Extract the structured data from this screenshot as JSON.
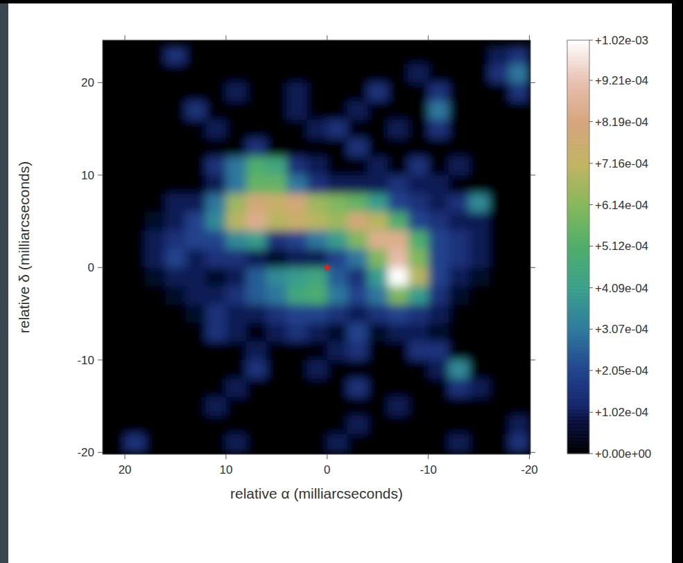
{
  "chart_data": {
    "type": "heatmap",
    "x_label": "relative α (milliarcseconds)",
    "y_label": "relative δ (milliarcseconds)",
    "xlim": [
      22.2,
      -20.1
    ],
    "ylim": [
      -20.2,
      24.6
    ],
    "xticks": [
      20,
      10,
      0,
      -10,
      -20
    ],
    "yticks": [
      -20,
      -10,
      0,
      10,
      20
    ],
    "x": [
      21,
      19,
      17,
      15,
      13,
      11,
      9,
      7,
      5,
      3,
      1,
      -1,
      -3,
      -5,
      -7,
      -9,
      -11,
      -13,
      -15,
      -17,
      -19
    ],
    "y": [
      23,
      21,
      19,
      17,
      15,
      13,
      11,
      9,
      7,
      5,
      3,
      1,
      -1,
      -3,
      -5,
      -7,
      -9,
      -11,
      -13,
      -15,
      -17,
      -19
    ],
    "z": [
      [
        0,
        0,
        0,
        0.00015,
        0,
        0,
        0,
        0,
        0,
        0,
        0,
        0,
        0,
        0,
        0,
        0,
        0,
        0,
        0,
        0.0001,
        0.00015
      ],
      [
        0,
        0,
        0,
        0,
        0,
        0,
        0,
        0,
        0,
        0,
        0,
        0,
        0,
        0,
        0,
        0.0001,
        0,
        0,
        0,
        0.00015,
        0.0003
      ],
      [
        0,
        0,
        0,
        0,
        0,
        0,
        0.0001,
        0,
        0,
        0.0001,
        0,
        0,
        0,
        0.00015,
        0,
        0,
        0.00015,
        0,
        0,
        0,
        0.00015
      ],
      [
        0,
        0,
        0,
        0,
        0.00015,
        0,
        0,
        0,
        0,
        0.0001,
        0,
        0,
        0.0001,
        0,
        0,
        0,
        0.0003,
        0,
        0,
        0,
        0
      ],
      [
        0,
        0,
        0,
        0,
        0,
        0.0001,
        0,
        0,
        0,
        0,
        0.0001,
        0.00015,
        0,
        0,
        0.0001,
        0,
        0.00015,
        0,
        0,
        0,
        0
      ],
      [
        0,
        0,
        0,
        0,
        0,
        0,
        0,
        0.00015,
        0,
        0,
        0,
        0,
        0.00015,
        0,
        0,
        0,
        0,
        0,
        0,
        0,
        0
      ],
      [
        0,
        0,
        0,
        0,
        0,
        0.00015,
        0.0003,
        0.0005,
        0.00045,
        0.00015,
        0.0001,
        0,
        0,
        0.0001,
        0,
        0.00015,
        0,
        0.0001,
        0,
        0,
        0
      ],
      [
        0,
        0,
        0,
        0,
        0,
        0.0001,
        0.0003,
        0.00055,
        0.00055,
        0.0003,
        0.00015,
        0.0001,
        0.0001,
        0.0001,
        0.00015,
        0.0001,
        0.0001,
        0,
        0,
        0,
        0
      ],
      [
        0,
        0,
        0,
        0.0001,
        0.0001,
        0.0003,
        0.00065,
        0.0008,
        0.00075,
        0.0008,
        0.00065,
        0.0006,
        0.00055,
        0.0004,
        0.0002,
        0.00015,
        0.0001,
        0.00015,
        0.00035,
        0,
        0
      ],
      [
        0,
        0,
        5e-05,
        0.0001,
        0.0002,
        0.00035,
        0.0007,
        0.00085,
        0.0007,
        0.00075,
        0.0007,
        0.00065,
        0.0008,
        0.0007,
        0.0005,
        0.0002,
        0.00015,
        0.0001,
        0.0001,
        0,
        0
      ],
      [
        0,
        0,
        0.0001,
        0.00015,
        0.0002,
        0.0002,
        0.00035,
        0.0004,
        0.00015,
        0.0002,
        0.0003,
        0.0004,
        0.0006,
        0.00085,
        0.00085,
        0.0005,
        0.0002,
        0.00015,
        0.0001,
        0,
        0
      ],
      [
        0,
        0,
        0.0001,
        0.0002,
        0.0001,
        0.00015,
        0.00015,
        0.0001,
        5e-05,
        0.0001,
        0.0001,
        0.0002,
        0.0003,
        0.0006,
        0.0009,
        0.0006,
        0.0002,
        0.00015,
        0.0001,
        0,
        0
      ],
      [
        0,
        0,
        5e-05,
        0.0001,
        0.0001,
        5e-05,
        0.0001,
        0.00025,
        0.00035,
        0.0004,
        0.00045,
        0.00025,
        0.00015,
        0.0004,
        0.00102,
        0.0007,
        0.0002,
        0.0001,
        5e-05,
        0,
        0
      ],
      [
        0,
        0,
        0,
        5e-05,
        0.0001,
        0.0001,
        0.00015,
        0.00025,
        0.0003,
        0.00045,
        0.0005,
        0.0003,
        0.0002,
        0.0003,
        0.0006,
        0.0004,
        0.00015,
        5e-05,
        0,
        0,
        0
      ],
      [
        0,
        0,
        0,
        0,
        5e-05,
        0.00015,
        0.0001,
        0.0001,
        0.00015,
        0.0002,
        0.0002,
        0.00015,
        0.0001,
        0.00015,
        0.0002,
        0.00015,
        0.0001,
        0,
        0,
        0,
        0
      ],
      [
        0,
        0,
        0,
        0,
        0,
        0.00015,
        0.0001,
        0,
        0.0001,
        0.00015,
        0.0001,
        5e-05,
        0.0002,
        5e-05,
        0.0001,
        0.0001,
        5e-05,
        0,
        0,
        0,
        0
      ],
      [
        0,
        0,
        0,
        0,
        0,
        0,
        0,
        0.0001,
        0,
        0,
        0,
        0.0001,
        0.00015,
        0,
        0,
        0.00015,
        0.00015,
        0,
        0,
        0,
        0
      ],
      [
        0,
        0,
        0,
        0,
        0,
        0,
        0,
        0.00015,
        0,
        0,
        0.0001,
        0,
        0,
        0,
        0,
        0,
        0.0001,
        0.00035,
        0,
        0,
        0
      ],
      [
        0,
        0,
        0,
        0,
        0,
        0,
        0.0001,
        0,
        0,
        0,
        0,
        0,
        0.00015,
        0,
        0,
        0,
        0,
        0.00015,
        0.0001,
        0,
        0
      ],
      [
        0,
        0,
        0,
        0,
        0,
        0.0001,
        0,
        0,
        0,
        0,
        0,
        0,
        0,
        0,
        0.0001,
        0,
        0,
        0,
        0,
        0,
        0
      ],
      [
        0,
        0,
        0,
        0,
        0,
        0,
        0,
        0,
        0,
        0,
        0,
        0,
        0.0001,
        0,
        0,
        0,
        0,
        0,
        0,
        0,
        0.0001
      ],
      [
        0,
        0.00015,
        0,
        0,
        0,
        0,
        0.0001,
        0,
        0,
        0,
        0,
        0.0001,
        0,
        0,
        0,
        0,
        0,
        0.0001,
        0,
        0,
        0.00015
      ]
    ],
    "colorbar": {
      "range": [
        0,
        0.00102
      ],
      "ticks": [
        {
          "value": 0,
          "label": "+0.00e+00"
        },
        {
          "value": 0.000102,
          "label": "+1.02e-04"
        },
        {
          "value": 0.000205,
          "label": "+2.05e-04"
        },
        {
          "value": 0.000307,
          "label": "+3.07e-04"
        },
        {
          "value": 0.000409,
          "label": "+4.09e-04"
        },
        {
          "value": 0.000512,
          "label": "+5.12e-04"
        },
        {
          "value": 0.000614,
          "label": "+6.14e-04"
        },
        {
          "value": 0.000716,
          "label": "+7.16e-04"
        },
        {
          "value": 0.000819,
          "label": "+8.19e-04"
        },
        {
          "value": 0.000921,
          "label": "+9.21e-04"
        },
        {
          "value": 0.00102,
          "label": "+1.02e-03"
        }
      ]
    },
    "star": {
      "x": 0,
      "y": 0,
      "color": "#e8201c"
    }
  }
}
